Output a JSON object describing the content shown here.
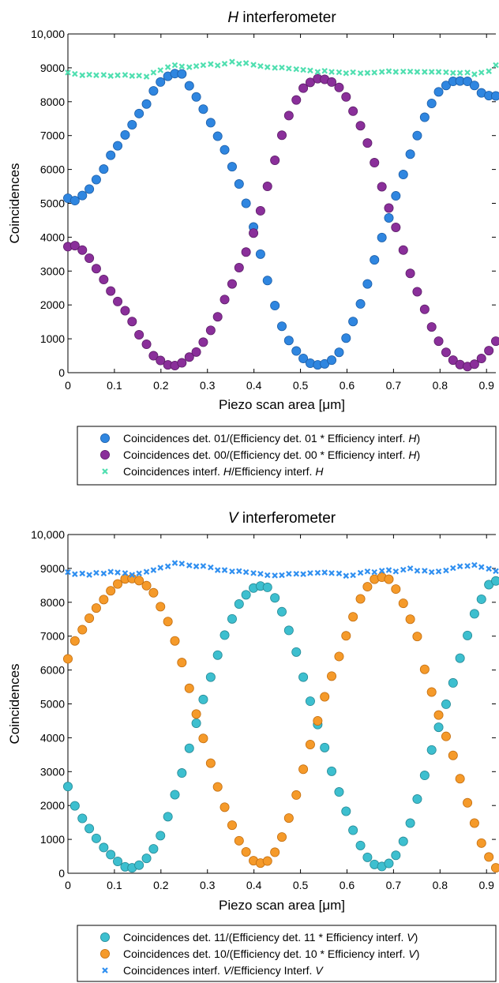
{
  "chart_data": [
    {
      "type": "scatter",
      "title_italic": "H",
      "title_rest": " interferometer",
      "xlabel": "Piezo scan area [μm]",
      "ylabel": "Coincidences",
      "xlim": [
        0,
        0.92
      ],
      "ylim": [
        0,
        10000
      ],
      "xticks": [
        "0",
        "0.1",
        "0.2",
        "0.3",
        "0.4",
        "0.5",
        "0.6",
        "0.7",
        "0.8",
        "0.9"
      ],
      "yticks": [
        "0",
        "1000",
        "2000",
        "3000",
        "4000",
        "5000",
        "6000",
        "7000",
        "8000",
        "9000",
        "10,000"
      ],
      "grid": false,
      "legend_position": "below",
      "series": [
        {
          "name_parts": [
            "Coincidences det. 01/(Efficiency det. 01 * Efficiency interf. ",
            "H",
            ")"
          ],
          "marker": "circle",
          "color": "#2f86e0",
          "edge": "#1d5fa8",
          "x": [
            0,
            0.015,
            0.031,
            0.046,
            0.061,
            0.077,
            0.092,
            0.107,
            0.123,
            0.138,
            0.153,
            0.169,
            0.184,
            0.199,
            0.215,
            0.23,
            0.245,
            0.261,
            0.276,
            0.291,
            0.307,
            0.322,
            0.337,
            0.353,
            0.368,
            0.383,
            0.399,
            0.414,
            0.429,
            0.445,
            0.46,
            0.475,
            0.491,
            0.506,
            0.521,
            0.537,
            0.552,
            0.567,
            0.583,
            0.598,
            0.613,
            0.629,
            0.644,
            0.659,
            0.675,
            0.69,
            0.705,
            0.721,
            0.736,
            0.751,
            0.767,
            0.782,
            0.797,
            0.813,
            0.828,
            0.843,
            0.859,
            0.874,
            0.889,
            0.905,
            0.92
          ],
          "y": [
            5150,
            5080,
            5230,
            5420,
            5700,
            6010,
            6420,
            6700,
            7020,
            7320,
            7650,
            7930,
            8320,
            8580,
            8750,
            8830,
            8820,
            8470,
            8140,
            7780,
            7380,
            6980,
            6580,
            6080,
            5570,
            5000,
            4300,
            3500,
            2720,
            1980,
            1370,
            950,
            640,
            420,
            280,
            230,
            260,
            370,
            600,
            1020,
            1510,
            2030,
            2620,
            3330,
            3990,
            4570,
            5220,
            5850,
            6450,
            7000,
            7540,
            7950,
            8290,
            8480,
            8600,
            8610,
            8600,
            8480,
            8260,
            8180,
            8170
          ]
        },
        {
          "name_parts": [
            "Coincidences det. 00/(Efficiency det. 00 * Efficiency interf. ",
            "H",
            ")"
          ],
          "marker": "circle",
          "color": "#8a2f9a",
          "edge": "#5e1f6a",
          "x": [
            0,
            0.015,
            0.031,
            0.046,
            0.061,
            0.077,
            0.092,
            0.107,
            0.123,
            0.138,
            0.153,
            0.169,
            0.184,
            0.199,
            0.215,
            0.23,
            0.245,
            0.261,
            0.276,
            0.291,
            0.307,
            0.322,
            0.337,
            0.353,
            0.368,
            0.383,
            0.399,
            0.414,
            0.429,
            0.445,
            0.46,
            0.475,
            0.491,
            0.506,
            0.521,
            0.537,
            0.552,
            0.567,
            0.583,
            0.598,
            0.613,
            0.629,
            0.644,
            0.659,
            0.675,
            0.69,
            0.705,
            0.721,
            0.736,
            0.751,
            0.767,
            0.782,
            0.797,
            0.813,
            0.828,
            0.843,
            0.859,
            0.874,
            0.889,
            0.905,
            0.92
          ],
          "y": [
            3720,
            3750,
            3620,
            3380,
            3070,
            2750,
            2410,
            2100,
            1830,
            1510,
            1120,
            840,
            500,
            360,
            230,
            210,
            290,
            460,
            610,
            900,
            1250,
            1650,
            2160,
            2620,
            3100,
            3560,
            4120,
            4780,
            5500,
            6270,
            7010,
            7590,
            8050,
            8400,
            8570,
            8680,
            8660,
            8580,
            8420,
            8140,
            7720,
            7290,
            6780,
            6200,
            5490,
            4860,
            4290,
            3620,
            2930,
            2390,
            1870,
            1350,
            930,
            600,
            370,
            240,
            180,
            250,
            420,
            650,
            930
          ]
        },
        {
          "name_parts": [
            "Coincidences interf. ",
            "H",
            "/Efficiency interf. ",
            "H"
          ],
          "marker": "x",
          "color": "#4fdfb0",
          "edge": "#4fdfb0",
          "x": [
            0,
            0.015,
            0.031,
            0.046,
            0.061,
            0.077,
            0.092,
            0.107,
            0.123,
            0.138,
            0.153,
            0.169,
            0.184,
            0.199,
            0.215,
            0.23,
            0.245,
            0.261,
            0.276,
            0.291,
            0.307,
            0.322,
            0.337,
            0.353,
            0.368,
            0.383,
            0.399,
            0.414,
            0.429,
            0.445,
            0.46,
            0.475,
            0.491,
            0.506,
            0.521,
            0.537,
            0.552,
            0.567,
            0.583,
            0.598,
            0.613,
            0.629,
            0.644,
            0.659,
            0.675,
            0.69,
            0.705,
            0.721,
            0.736,
            0.751,
            0.767,
            0.782,
            0.797,
            0.813,
            0.828,
            0.843,
            0.859,
            0.874,
            0.889,
            0.905,
            0.92
          ],
          "y": [
            8860,
            8820,
            8780,
            8800,
            8780,
            8790,
            8760,
            8780,
            8790,
            8760,
            8770,
            8740,
            8860,
            8930,
            9020,
            9080,
            9040,
            9020,
            9050,
            9080,
            9110,
            9070,
            9120,
            9180,
            9120,
            9140,
            9090,
            9050,
            9020,
            9000,
            9010,
            8980,
            8960,
            8940,
            8920,
            8880,
            8910,
            8880,
            8870,
            8840,
            8870,
            8840,
            8850,
            8860,
            8880,
            8900,
            8880,
            8890,
            8890,
            8880,
            8880,
            8880,
            8880,
            8870,
            8850,
            8850,
            8860,
            8810,
            8860,
            8900,
            9080
          ]
        }
      ]
    },
    {
      "type": "scatter",
      "title_italic": "V",
      "title_rest": " interferometer",
      "xlabel": "Piezo scan area [μm]",
      "ylabel": "Coincidences",
      "xlim": [
        0,
        0.92
      ],
      "ylim": [
        0,
        10000
      ],
      "xticks": [
        "0",
        "0.1",
        "0.2",
        "0.3",
        "0.4",
        "0.5",
        "0.6",
        "0.7",
        "0.8",
        "0.9"
      ],
      "yticks": [
        "0",
        "1000",
        "2000",
        "3000",
        "4000",
        "5000",
        "6000",
        "7000",
        "8000",
        "9000",
        "10,000"
      ],
      "grid": false,
      "legend_position": "below",
      "series": [
        {
          "name_parts": [
            "Coincidences det. 11/(Efficiency det. 11 * Efficiency interf. ",
            "V",
            ")"
          ],
          "marker": "circle",
          "color": "#3dbfcf",
          "edge": "#268a96",
          "x": [
            0,
            0.015,
            0.031,
            0.046,
            0.061,
            0.077,
            0.092,
            0.107,
            0.123,
            0.138,
            0.153,
            0.169,
            0.184,
            0.199,
            0.215,
            0.23,
            0.245,
            0.261,
            0.276,
            0.291,
            0.307,
            0.322,
            0.337,
            0.353,
            0.368,
            0.383,
            0.399,
            0.414,
            0.429,
            0.445,
            0.46,
            0.475,
            0.491,
            0.506,
            0.521,
            0.537,
            0.552,
            0.567,
            0.583,
            0.598,
            0.613,
            0.629,
            0.644,
            0.659,
            0.675,
            0.69,
            0.705,
            0.721,
            0.736,
            0.751,
            0.767,
            0.782,
            0.797,
            0.813,
            0.828,
            0.843,
            0.859,
            0.874,
            0.889,
            0.905,
            0.92
          ],
          "y": [
            2560,
            1990,
            1620,
            1320,
            1030,
            760,
            550,
            350,
            190,
            160,
            240,
            440,
            720,
            1110,
            1670,
            2320,
            2960,
            3690,
            4430,
            5130,
            5790,
            6440,
            7030,
            7510,
            7950,
            8220,
            8420,
            8480,
            8440,
            8130,
            7720,
            7170,
            6530,
            5790,
            5080,
            4390,
            3710,
            3010,
            2400,
            1830,
            1270,
            820,
            470,
            260,
            200,
            290,
            530,
            940,
            1480,
            2190,
            2890,
            3640,
            4310,
            4990,
            5620,
            6350,
            7020,
            7660,
            8090,
            8520,
            8630
          ]
        },
        {
          "name_parts": [
            "Coincidences det. 10/(Efficiency det. 10 * Efficiency interf. ",
            "V",
            ")"
          ],
          "marker": "circle",
          "color": "#f59a2a",
          "edge": "#c46f10",
          "x": [
            0,
            0.015,
            0.031,
            0.046,
            0.061,
            0.077,
            0.092,
            0.107,
            0.123,
            0.138,
            0.153,
            0.169,
            0.184,
            0.199,
            0.215,
            0.23,
            0.245,
            0.261,
            0.276,
            0.291,
            0.307,
            0.322,
            0.337,
            0.353,
            0.368,
            0.383,
            0.399,
            0.414,
            0.429,
            0.445,
            0.46,
            0.475,
            0.491,
            0.506,
            0.521,
            0.537,
            0.552,
            0.567,
            0.583,
            0.598,
            0.613,
            0.629,
            0.644,
            0.659,
            0.675,
            0.69,
            0.705,
            0.721,
            0.736,
            0.751,
            0.767,
            0.782,
            0.797,
            0.813,
            0.828,
            0.843,
            0.859,
            0.874,
            0.889,
            0.905,
            0.92
          ],
          "y": [
            6330,
            6860,
            7190,
            7530,
            7830,
            8080,
            8340,
            8540,
            8690,
            8700,
            8640,
            8490,
            8280,
            7870,
            7430,
            6860,
            6220,
            5460,
            4700,
            3980,
            3250,
            2550,
            1950,
            1420,
            960,
            630,
            370,
            300,
            360,
            620,
            1070,
            1630,
            2310,
            3070,
            3800,
            4500,
            5210,
            5820,
            6400,
            7010,
            7570,
            8100,
            8460,
            8680,
            8740,
            8680,
            8390,
            7970,
            7500,
            6990,
            6020,
            5350,
            4670,
            4040,
            3480,
            2790,
            2080,
            1480,
            890,
            480,
            160
          ]
        },
        {
          "name_parts": [
            "Coincidences interf. ",
            "V",
            "/Efficiency Interf. ",
            "V"
          ],
          "marker": "x",
          "color": "#2f8ff0",
          "edge": "#2f8ff0",
          "x": [
            0,
            0.015,
            0.031,
            0.046,
            0.061,
            0.077,
            0.092,
            0.107,
            0.123,
            0.138,
            0.153,
            0.169,
            0.184,
            0.199,
            0.215,
            0.23,
            0.245,
            0.261,
            0.276,
            0.291,
            0.307,
            0.322,
            0.337,
            0.353,
            0.368,
            0.383,
            0.399,
            0.414,
            0.429,
            0.445,
            0.46,
            0.475,
            0.491,
            0.506,
            0.521,
            0.537,
            0.552,
            0.567,
            0.583,
            0.598,
            0.613,
            0.629,
            0.644,
            0.659,
            0.675,
            0.69,
            0.705,
            0.721,
            0.736,
            0.751,
            0.767,
            0.782,
            0.797,
            0.813,
            0.828,
            0.843,
            0.859,
            0.874,
            0.889,
            0.905,
            0.92
          ],
          "y": [
            8890,
            8830,
            8850,
            8810,
            8870,
            8850,
            8900,
            8880,
            8860,
            8810,
            8850,
            8900,
            8950,
            9020,
            9060,
            9160,
            9140,
            9090,
            9060,
            9070,
            9030,
            8950,
            8950,
            8910,
            8920,
            8890,
            8860,
            8840,
            8800,
            8790,
            8800,
            8840,
            8840,
            8830,
            8860,
            8870,
            8880,
            8860,
            8850,
            8780,
            8800,
            8870,
            8910,
            8890,
            8930,
            8950,
            8910,
            8960,
            9000,
            8930,
            8930,
            8890,
            8910,
            8940,
            9010,
            9060,
            9070,
            9100,
            9040,
            8990,
            8920
          ]
        }
      ]
    }
  ]
}
